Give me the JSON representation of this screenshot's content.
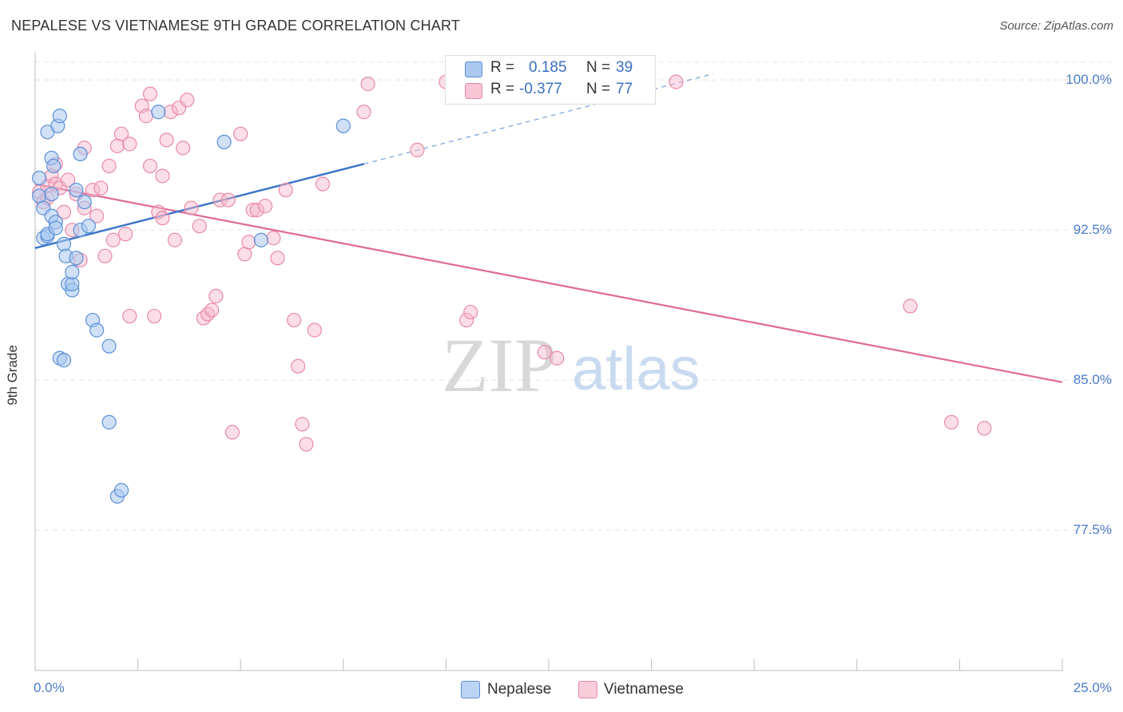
{
  "title": "NEPALESE VS VIETNAMESE 9TH GRADE CORRELATION CHART",
  "source": "Source: ZipAtlas.com",
  "watermark": {
    "zip": "ZIP",
    "atlas": "atlas"
  },
  "legend": {
    "rows": [
      {
        "r_label": "R =",
        "r_value": "0.185",
        "n_label": "N =",
        "n_value": "39"
      },
      {
        "r_label": "R =",
        "r_value": "-0.377",
        "n_label": "N =",
        "n_value": "77"
      }
    ]
  },
  "bottom_legend": {
    "nepalese": "Nepalese",
    "vietnamese": "Vietnamese"
  },
  "colors": {
    "nepalese_fill": "#aac8f0",
    "nepalese_stroke": "#5b8fd6",
    "nepalese_line": "#3a74c8",
    "vietnamese_fill": "#f7b6c9",
    "vietnamese_stroke": "#e88aa8",
    "vietnamese_line": "#e06a95",
    "tick_text": "#4a7cc7",
    "grid": "#e3e3e3"
  },
  "chart_data": {
    "type": "scatter",
    "title": "NEPALESE VS VIETNAMESE 9TH GRADE CORRELATION CHART",
    "xlabel": "",
    "ylabel": "9th Grade",
    "xlim": [
      0,
      25
    ],
    "ylim": [
      70.5,
      101.2
    ],
    "x_ticks": [
      "0.0%",
      "25.0%"
    ],
    "y_ticks": [
      {
        "value": 100.0,
        "label": "100.0%"
      },
      {
        "value": 92.5,
        "label": "92.5%"
      },
      {
        "value": 85.0,
        "label": "85.0%"
      },
      {
        "value": 77.5,
        "label": "77.5%"
      }
    ],
    "grid": true,
    "legend_position": "top-center",
    "series": [
      {
        "name": "Nepalese",
        "R": 0.185,
        "N": 39,
        "trend": {
          "x0": 0.0,
          "y0": 91.6,
          "x1": 8.0,
          "y1": 95.8,
          "dashed_to_x": 16.5,
          "dashed_to_y": 100.3
        },
        "points": [
          [
            0.1,
            94.2
          ],
          [
            0.1,
            95.1
          ],
          [
            0.2,
            93.6
          ],
          [
            0.2,
            92.1
          ],
          [
            0.3,
            92.2
          ],
          [
            0.3,
            92.3
          ],
          [
            0.3,
            97.4
          ],
          [
            0.4,
            96.1
          ],
          [
            0.4,
            94.3
          ],
          [
            0.4,
            93.2
          ],
          [
            0.45,
            95.7
          ],
          [
            0.5,
            92.9
          ],
          [
            0.5,
            92.6
          ],
          [
            0.55,
            97.7
          ],
          [
            0.6,
            98.2
          ],
          [
            0.7,
            91.8
          ],
          [
            0.75,
            91.2
          ],
          [
            0.8,
            89.8
          ],
          [
            0.9,
            89.5
          ],
          [
            0.9,
            89.8
          ],
          [
            0.6,
            86.1
          ],
          [
            0.7,
            86.0
          ],
          [
            1.0,
            94.5
          ],
          [
            0.9,
            90.4
          ],
          [
            1.1,
            92.5
          ],
          [
            1.1,
            96.3
          ],
          [
            1.0,
            91.1
          ],
          [
            1.2,
            93.9
          ],
          [
            1.3,
            92.7
          ],
          [
            1.4,
            88.0
          ],
          [
            1.5,
            87.5
          ],
          [
            1.8,
            86.7
          ],
          [
            1.8,
            82.9
          ],
          [
            2.0,
            79.2
          ],
          [
            2.1,
            79.5
          ],
          [
            3.0,
            98.4
          ],
          [
            4.6,
            96.9
          ],
          [
            5.5,
            92.0
          ],
          [
            7.5,
            97.7
          ]
        ]
      },
      {
        "name": "Vietnamese",
        "R": -0.377,
        "N": 77,
        "trend": {
          "x0": 0.0,
          "y0": 94.8,
          "x1": 25.0,
          "y1": 84.9
        },
        "points": [
          [
            0.1,
            94.4
          ],
          [
            0.2,
            93.9
          ],
          [
            0.3,
            94.7
          ],
          [
            0.3,
            94.1
          ],
          [
            0.4,
            95.2
          ],
          [
            0.5,
            95.8
          ],
          [
            0.5,
            94.8
          ],
          [
            0.6,
            94.6
          ],
          [
            0.7,
            93.4
          ],
          [
            0.8,
            95.0
          ],
          [
            0.9,
            92.5
          ],
          [
            1.0,
            94.3
          ],
          [
            1.1,
            91.0
          ],
          [
            1.2,
            96.6
          ],
          [
            1.2,
            93.6
          ],
          [
            1.4,
            94.5
          ],
          [
            1.5,
            93.2
          ],
          [
            1.6,
            94.6
          ],
          [
            1.7,
            91.2
          ],
          [
            1.8,
            95.7
          ],
          [
            1.9,
            92.0
          ],
          [
            2.0,
            96.7
          ],
          [
            2.1,
            97.3
          ],
          [
            2.2,
            92.3
          ],
          [
            2.3,
            96.8
          ],
          [
            2.3,
            88.2
          ],
          [
            2.6,
            98.7
          ],
          [
            2.7,
            98.2
          ],
          [
            2.8,
            95.7
          ],
          [
            2.8,
            99.3
          ],
          [
            2.9,
            88.2
          ],
          [
            3.0,
            93.4
          ],
          [
            3.1,
            95.2
          ],
          [
            3.1,
            93.1
          ],
          [
            3.2,
            97.0
          ],
          [
            3.3,
            98.4
          ],
          [
            3.4,
            92.0
          ],
          [
            3.5,
            98.6
          ],
          [
            3.6,
            96.6
          ],
          [
            3.7,
            99.0
          ],
          [
            3.8,
            93.6
          ],
          [
            4.0,
            92.7
          ],
          [
            4.1,
            88.1
          ],
          [
            4.2,
            88.3
          ],
          [
            4.3,
            88.5
          ],
          [
            4.4,
            89.2
          ],
          [
            4.5,
            94.0
          ],
          [
            4.7,
            94.0
          ],
          [
            4.8,
            82.4
          ],
          [
            5.0,
            97.3
          ],
          [
            5.1,
            91.3
          ],
          [
            5.2,
            91.9
          ],
          [
            5.3,
            93.5
          ],
          [
            5.4,
            93.5
          ],
          [
            5.6,
            93.7
          ],
          [
            5.8,
            92.1
          ],
          [
            5.9,
            91.1
          ],
          [
            6.1,
            94.5
          ],
          [
            6.3,
            88.0
          ],
          [
            6.4,
            85.7
          ],
          [
            6.5,
            82.8
          ],
          [
            6.6,
            81.8
          ],
          [
            6.8,
            87.5
          ],
          [
            7.0,
            94.8
          ],
          [
            8.0,
            98.4
          ],
          [
            8.1,
            99.8
          ],
          [
            9.3,
            96.5
          ],
          [
            10.0,
            99.9
          ],
          [
            10.3,
            99.9
          ],
          [
            10.5,
            88.0
          ],
          [
            10.6,
            88.4
          ],
          [
            12.4,
            86.4
          ],
          [
            12.7,
            86.1
          ],
          [
            15.6,
            99.9
          ],
          [
            21.3,
            88.7
          ],
          [
            22.3,
            82.9
          ],
          [
            23.1,
            82.6
          ]
        ]
      }
    ]
  }
}
